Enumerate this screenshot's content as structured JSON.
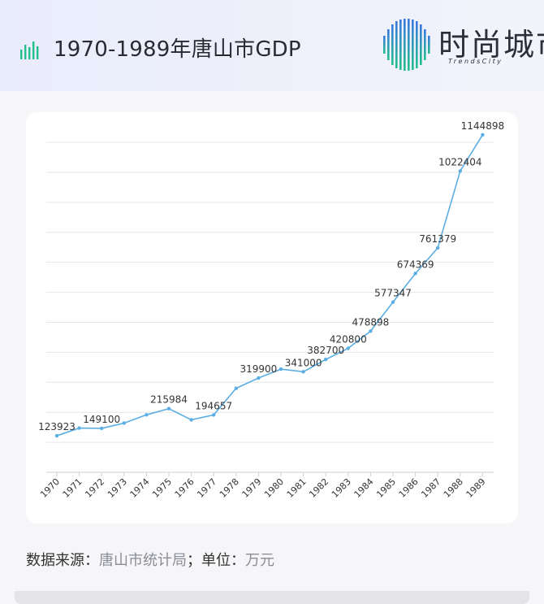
{
  "header": {
    "title": "1970-1989年唐山市GDP",
    "logo_text": "时尚城市",
    "logo_subtext": "TrendsCity",
    "title_icon": "bar-chart-icon"
  },
  "footer": {
    "source_label": "数据来源：",
    "source_value": "唐山市统计局",
    "unit_label": "；单位：",
    "unit_value": "万元"
  },
  "colors": {
    "line": "#5aaee3",
    "grid": "#e6e6e6",
    "label": "#333333",
    "accent_green": "#23c08c",
    "accent_blue": "#3a78e0"
  },
  "chart_data": {
    "type": "line",
    "title": "",
    "xlabel": "",
    "ylabel": "",
    "grid": true,
    "ylim": [
      0,
      1150000
    ],
    "categories": [
      "1970",
      "1971",
      "1972",
      "1973",
      "1974",
      "1975",
      "1976",
      "1977",
      "1978",
      "1979",
      "1980",
      "1981",
      "1982",
      "1983",
      "1984",
      "1985",
      "1986",
      "1987",
      "1988",
      "1989"
    ],
    "series": [
      {
        "values": [
          123923,
          150000,
          149100,
          167000,
          195000,
          215984,
          178000,
          194657,
          285000,
          319900,
          350000,
          341000,
          382700,
          420800,
          478898,
          577347,
          674369,
          761379,
          1022404,
          1144898
        ],
        "labeled": [
          true,
          false,
          true,
          false,
          false,
          true,
          false,
          true,
          false,
          true,
          false,
          true,
          true,
          true,
          true,
          true,
          true,
          true,
          true,
          true
        ]
      }
    ]
  }
}
